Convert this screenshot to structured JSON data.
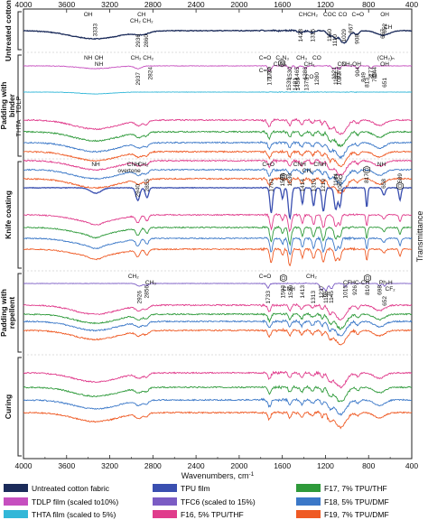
{
  "chart_data": {
    "type": "line",
    "xlabel": "Wavenumbers, cm",
    "xlabel_sup": "-1",
    "ylabel": "Transmittance",
    "x_range": [
      4000,
      400
    ],
    "x_ticks": [
      4000,
      3600,
      3200,
      2800,
      2400,
      2000,
      1600,
      1200,
      800,
      400
    ],
    "panels": [
      {
        "title": "Untreated cotton",
        "series": [
          "Untreated cotton fabric"
        ]
      },
      {
        "title": "Padding with binder",
        "series": [
          "TDLP film (scaled to10%)",
          "THTA film (scaled to 5%)",
          "F16, 5% TPU/THF",
          "F17, 7% TPU/THF",
          "F18, 5% TPU/DMF",
          "F19, 7% TPU/DMF"
        ],
        "sub_labels": [
          "TDLP",
          "THTA",
          "TDLP"
        ]
      },
      {
        "title": "Knife coating",
        "series": [
          "TPU film",
          "F16, 5% TPU/THF",
          "F17, 7% TPU/THF",
          "F18, 5% TPU/DMF",
          "F19, 7% TPU/DMF"
        ]
      },
      {
        "title": "Padding with repellent",
        "series": [
          "TFC6 (scaled to 15%)",
          "F16, 5% TPU/THF",
          "F17, 7% TPU/THF",
          "F18, 5% TPU/DMF",
          "F19, 7% TPU/DMF"
        ]
      },
      {
        "title": "Curing",
        "series": [
          "F16, 5% TPU/THF",
          "F17, 7% TPU/THF",
          "F18, 5% TPU/DMF",
          "F19, 7% TPU/DMF"
        ]
      }
    ],
    "legend": [
      {
        "name": "Untreated cotton fabric",
        "color": "#1b2b5a"
      },
      {
        "name": "TPU film",
        "color": "#3a4fb0"
      },
      {
        "name": "F17, 7% TPU/THF",
        "color": "#2e9a3a"
      },
      {
        "name": "TDLP film (scaled to10%)",
        "color": "#c64fbf"
      },
      {
        "name": "TFC6 (scaled to 15%)",
        "color": "#7b5cc4"
      },
      {
        "name": "F18, 5% TPU/DMF",
        "color": "#3b78c8"
      },
      {
        "name": "THTA film (scaled to 5%)",
        "color": "#32b7d8"
      },
      {
        "name": "F16, 5% TPU/THF",
        "color": "#e03c8c"
      },
      {
        "name": "F19, 7% TPU/DMF",
        "color": "#ef5a24"
      }
    ],
    "annotations": [
      {
        "text": "OH",
        "x": 3400,
        "p": 0
      },
      {
        "text": "3333",
        "x": 3333,
        "p": 0
      },
      {
        "text": "CH",
        "x": 2905,
        "p": 0
      },
      {
        "text": "CH₂ CH₂",
        "x": 2905,
        "p": 0
      },
      {
        "text": "2936",
        "x": 2936,
        "p": 0
      },
      {
        "text": "2860",
        "x": 2860,
        "p": 0
      },
      {
        "text": "CH",
        "x": 1410,
        "p": 0
      },
      {
        "text": "1428",
        "x": 1428,
        "p": 0
      },
      {
        "text": "CH₂",
        "x": 1320,
        "p": 0
      },
      {
        "text": "1315",
        "x": 1315,
        "p": 0
      },
      {
        "text": "COC",
        "x": 1160,
        "p": 0
      },
      {
        "text": "1160",
        "x": 1160,
        "p": 0
      },
      {
        "text": "1110",
        "x": 1110,
        "p": 0
      },
      {
        "text": "CO",
        "x": 1040,
        "p": 0
      },
      {
        "text": "1029",
        "x": 1029,
        "p": 0
      },
      {
        "text": "C=O",
        "x": 900,
        "p": 0
      },
      {
        "text": "967",
        "x": 967,
        "p": 0
      },
      {
        "text": "908",
        "x": 908,
        "p": 0
      },
      {
        "text": "OH",
        "x": 650,
        "p": 0
      },
      {
        "text": "667",
        "x": 667,
        "p": 0
      },
      {
        "text": "CH",
        "x": 620,
        "p": 0
      },
      {
        "text": "652",
        "x": 652,
        "p": 0
      },
      {
        "text": "NH",
        "x": 3400,
        "p": 1
      },
      {
        "text": "CH₂ CH₂",
        "x": 2900,
        "p": 1
      },
      {
        "text": "C=O",
        "x": 1760,
        "p": 1
      },
      {
        "text": "1717",
        "x": 1717,
        "p": 1
      },
      {
        "text": "1530",
        "x": 1530,
        "p": 1
      },
      {
        "text": "1465",
        "x": 1465,
        "p": 1
      },
      {
        "text": "1386",
        "x": 1386,
        "p": 1
      },
      {
        "text": "CH₃",
        "x": 1350,
        "p": 1
      },
      {
        "text": "777",
        "x": 777,
        "p": 1
      },
      {
        "text": "OH",
        "x": 3300,
        "p": 1
      },
      {
        "text": "NH",
        "x": 3300,
        "p": 1
      },
      {
        "text": "2937",
        "x": 2937,
        "p": 1
      },
      {
        "text": "2824",
        "x": 2824,
        "p": 1
      },
      {
        "text": "C=O",
        "x": 1760,
        "p": 1
      },
      {
        "text": "1720",
        "x": 1720,
        "p": 1
      },
      {
        "text": "C₃N₃",
        "x": 1600,
        "p": 1
      },
      {
        "text": "1481",
        "x": 1481,
        "p": 1
      },
      {
        "text": "1456",
        "x": 1456,
        "p": 1
      },
      {
        "text": "1375",
        "x": 1375,
        "p": 1
      },
      {
        "text": "CH₃",
        "x": 1420,
        "p": 1
      },
      {
        "text": "CO",
        "x": 1350,
        "p": 1
      },
      {
        "text": "1121",
        "x": 1121,
        "p": 1
      },
      {
        "text": "1073",
        "x": 1073,
        "p": 1
      },
      {
        "text": "904",
        "x": 904,
        "p": 1
      },
      {
        "text": "849",
        "x": 849,
        "p": 1
      },
      {
        "text": "813",
        "x": 813,
        "p": 1
      },
      {
        "text": "742",
        "x": 742,
        "p": 1
      },
      {
        "text": "(CH₂)ₙ",
        "x": 640,
        "p": 1
      },
      {
        "text": "CO",
        "x": 1280,
        "p": 1
      },
      {
        "text": "1280",
        "x": 1280,
        "p": 1
      },
      {
        "text": "CN",
        "x": 1050,
        "p": 1
      },
      {
        "text": "1073",
        "x": 1073,
        "p": 1
      },
      {
        "text": "1103",
        "x": 1103,
        "p": 1
      },
      {
        "text": "CH₂OH",
        "x": 960,
        "p": 1
      },
      {
        "text": "NH",
        "x": 760,
        "p": 1
      },
      {
        "text": "744",
        "x": 744,
        "p": 1
      },
      {
        "text": "OH",
        "x": 651,
        "p": 1
      },
      {
        "text": "651",
        "x": 651,
        "p": 1
      },
      {
        "text": "C₃N₃",
        "x": 1620,
        "p": 1
      },
      {
        "text": "1539",
        "x": 1539,
        "p": 1
      },
      {
        "text": "CNH",
        "x": 2980,
        "p": 2
      },
      {
        "text": "overtone",
        "x": 3020,
        "p": 2
      },
      {
        "text": "CH₂",
        "x": 2890,
        "p": 2
      },
      {
        "text": "2940",
        "x": 2940,
        "p": 2
      },
      {
        "text": "2855",
        "x": 2855,
        "p": 2
      },
      {
        "text": "NH",
        "x": 3330,
        "p": 2
      },
      {
        "text": "C=O",
        "x": 1730,
        "p": 2
      },
      {
        "text": "1703",
        "x": 1703,
        "p": 2
      },
      {
        "text": "1598",
        "x": 1598,
        "p": 2
      },
      {
        "text": "1530",
        "x": 1530,
        "p": 2
      },
      {
        "text": "CNH",
        "x": 1440,
        "p": 2
      },
      {
        "text": "1414",
        "x": 1414,
        "p": 2
      },
      {
        "text": "CH₂",
        "x": 1365,
        "p": 2
      },
      {
        "text": "1310",
        "x": 1310,
        "p": 2
      },
      {
        "text": "CNH",
        "x": 1250,
        "p": 2
      },
      {
        "text": "1219",
        "x": 1219,
        "p": 2
      },
      {
        "text": "1104",
        "x": 1104,
        "p": 2
      },
      {
        "text": "1066",
        "x": 1066,
        "p": 2
      },
      {
        "text": "CO",
        "x": 1080,
        "p": 2
      },
      {
        "text": "817",
        "x": 817,
        "p": 2
      },
      {
        "text": "NH",
        "x": 680,
        "p": 2
      },
      {
        "text": "658",
        "x": 658,
        "p": 2
      },
      {
        "text": "509",
        "x": 509,
        "p": 2
      },
      {
        "text": "CH₂",
        "x": 2980,
        "p": 3
      },
      {
        "text": "2926",
        "x": 2926,
        "p": 3
      },
      {
        "text": "2856",
        "x": 2856,
        "p": 3
      },
      {
        "text": "CH₃",
        "x": 2820,
        "p": 3
      },
      {
        "text": "C=O",
        "x": 1760,
        "p": 3
      },
      {
        "text": "1733",
        "x": 1733,
        "p": 3
      },
      {
        "text": "1593",
        "x": 1593,
        "p": 3
      },
      {
        "text": "1520",
        "x": 1520,
        "p": 3
      },
      {
        "text": "1413",
        "x": 1413,
        "p": 3
      },
      {
        "text": "CH₂",
        "x": 1330,
        "p": 3
      },
      {
        "text": "1313",
        "x": 1313,
        "p": 3
      },
      {
        "text": "1237",
        "x": 1237,
        "p": 3
      },
      {
        "text": "1196",
        "x": 1196,
        "p": 3
      },
      {
        "text": "1145",
        "x": 1145,
        "p": 3
      },
      {
        "text": "CNH",
        "x": 1540,
        "p": 3
      },
      {
        "text": "CF₂",
        "x": 1180,
        "p": 3
      },
      {
        "text": "926",
        "x": 926,
        "p": 3
      },
      {
        "text": "HC-CH",
        "x": 880,
        "p": 3
      },
      {
        "text": "810",
        "x": 810,
        "p": 3
      },
      {
        "text": "698",
        "x": 698,
        "p": 3
      },
      {
        "text": "Ph-H",
        "x": 640,
        "p": 3
      },
      {
        "text": "1015",
        "x": 1015,
        "p": 3
      },
      {
        "text": "CF",
        "x": 1000,
        "p": 3
      },
      {
        "text": "652",
        "x": 652,
        "p": 3
      },
      {
        "text": "CF₂",
        "x": 600,
        "p": 3
      }
    ]
  }
}
